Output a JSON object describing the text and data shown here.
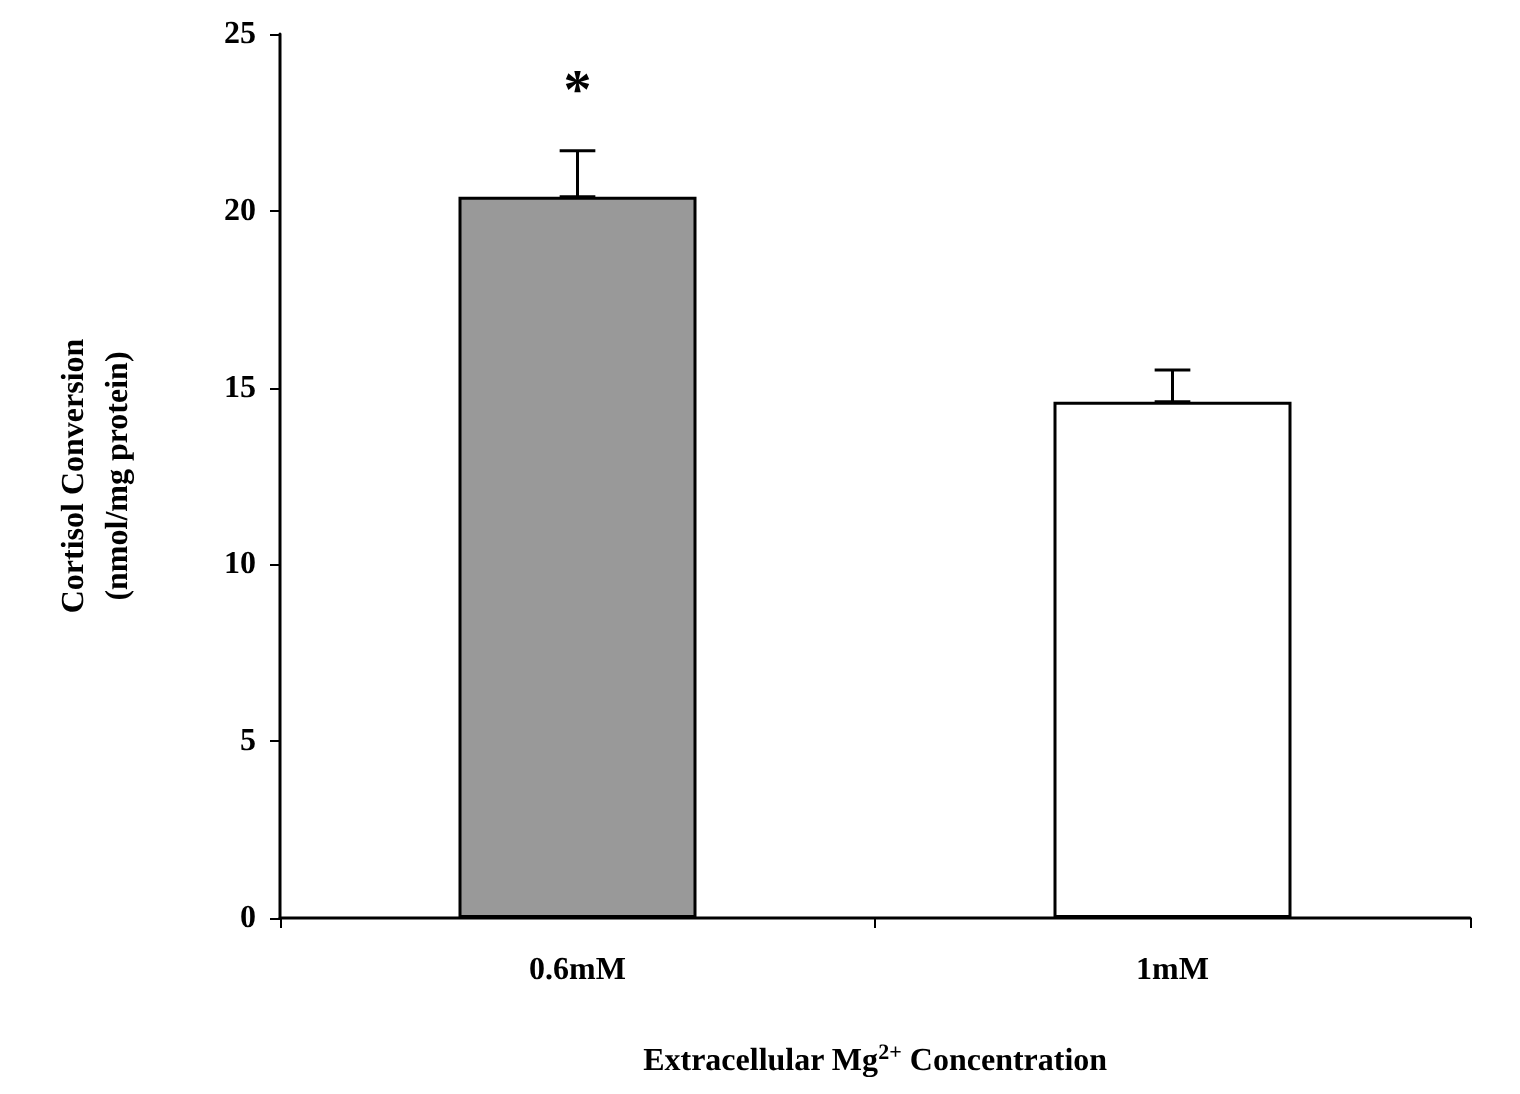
{
  "chart_data": {
    "type": "bar",
    "xlabel": "Extracellular Mg$^{2+}$ Concentration",
    "ylabel": "Cortisol Conversion\n(nmol/mg protein)",
    "categories": [
      "0.6mM",
      "1mM"
    ],
    "values": [
      20.4,
      14.6
    ],
    "colors": [
      "#999999",
      "#ffffff"
    ],
    "errors": [
      [
        20.4,
        21.7
      ],
      [
        14.6,
        15.5
      ]
    ],
    "ylim": [
      0,
      25
    ],
    "yticks": [
      0,
      5,
      10,
      15,
      20,
      25
    ],
    "grid": false,
    "annotations": [
      "*"
    ]
  }
}
